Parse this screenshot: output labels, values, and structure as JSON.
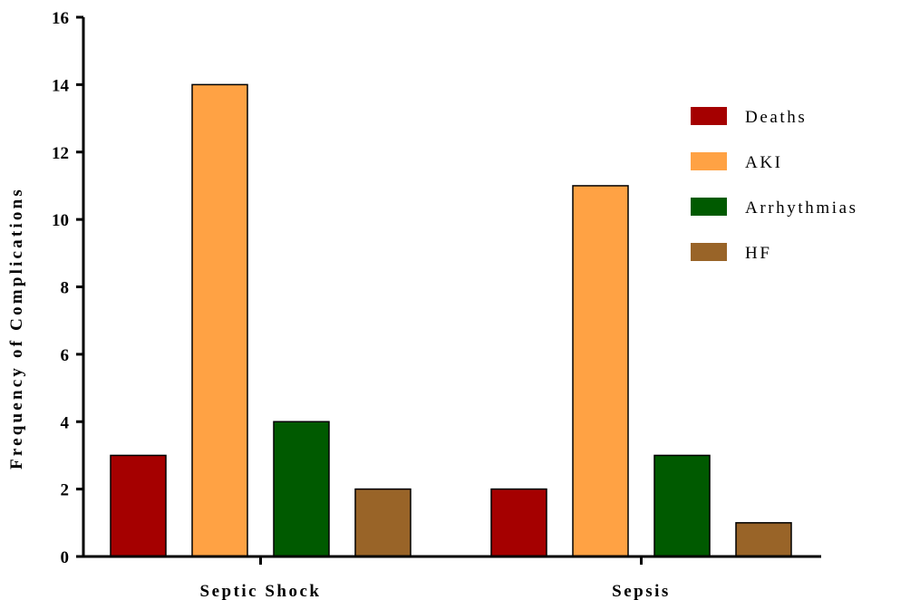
{
  "chart_data": {
    "type": "bar",
    "title": "",
    "xlabel": "",
    "ylabel": "Frequency of Complications",
    "ylim": [
      0,
      16
    ],
    "yticks": [
      0,
      2,
      4,
      6,
      8,
      10,
      12,
      14,
      16
    ],
    "categories": [
      "Septic Shock",
      "Sepsis"
    ],
    "series": [
      {
        "name": "Deaths",
        "color": "#A50000",
        "values": [
          3,
          2
        ]
      },
      {
        "name": "AKI",
        "color": "#FFA244",
        "values": [
          14,
          11
        ]
      },
      {
        "name": "Arrhythmias",
        "color": "#005A00",
        "values": [
          4,
          3
        ]
      },
      {
        "name": "HF",
        "color": "#996428",
        "values": [
          2,
          1
        ]
      }
    ],
    "grid": false,
    "legend_position": "right"
  }
}
